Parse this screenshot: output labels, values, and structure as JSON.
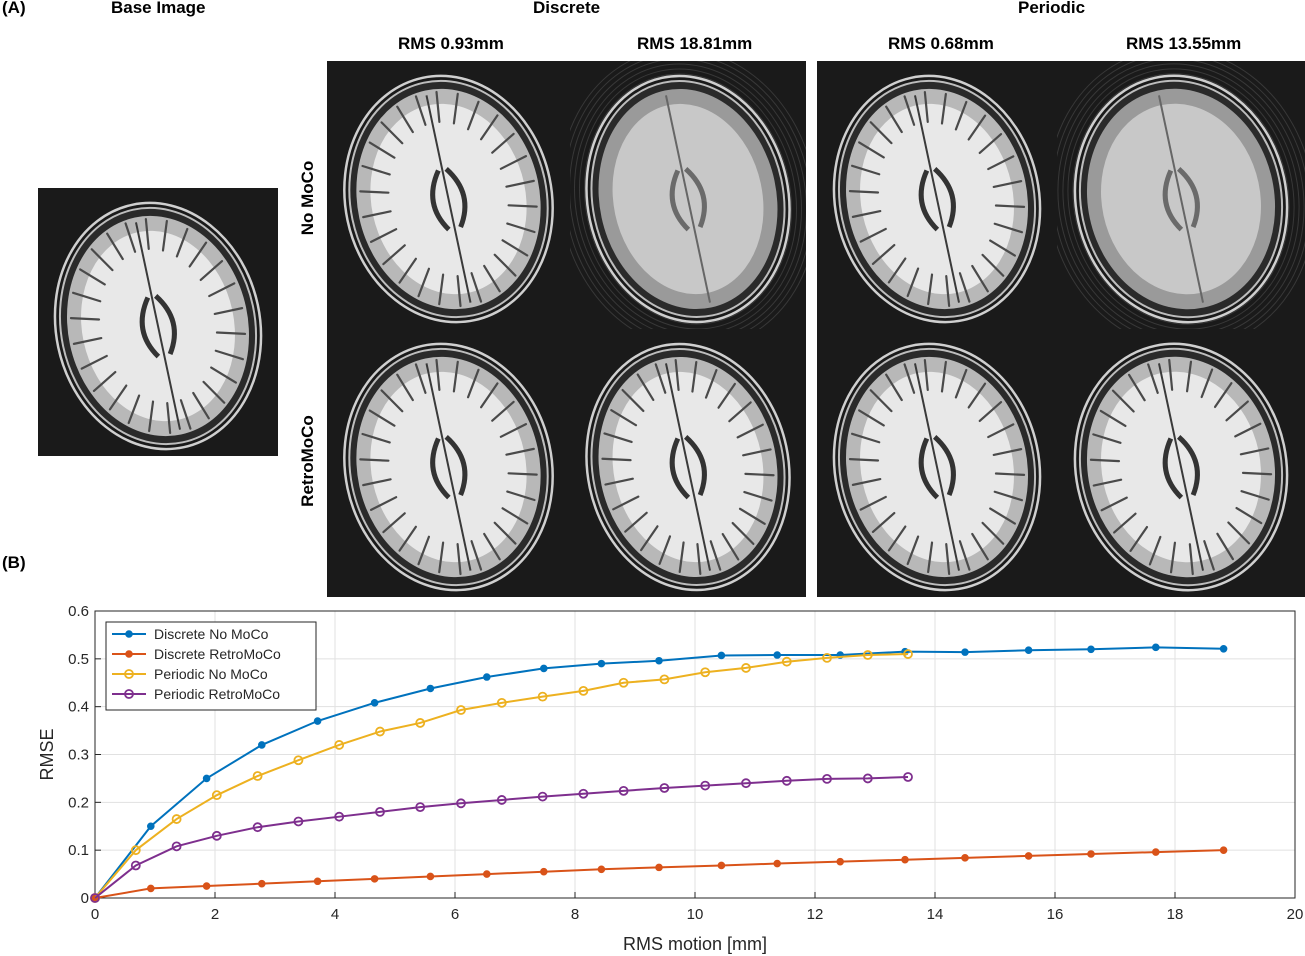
{
  "panel_a": {
    "letter": "(A)",
    "base_title": "Base Image",
    "group_discrete": "Discrete",
    "group_periodic": "Periodic",
    "col_labels": [
      "RMS 0.93mm",
      "RMS 18.81mm",
      "RMS 0.68mm",
      "RMS 13.55mm"
    ],
    "row_labels": [
      "No MoCo",
      "RetroMoCo"
    ]
  },
  "panel_b": {
    "letter": "(B)"
  },
  "chart_data": {
    "type": "line",
    "xlabel": "RMS motion [mm]",
    "ylabel": "RMSE",
    "xlim": [
      0,
      20
    ],
    "ylim": [
      0,
      0.6
    ],
    "xticks": [
      0,
      2,
      4,
      6,
      8,
      10,
      12,
      14,
      16,
      18,
      20
    ],
    "yticks": [
      0,
      0.1,
      0.2,
      0.3,
      0.4,
      0.5,
      0.6
    ],
    "ytick_labels": [
      "0",
      "0.1",
      "0.2",
      "0.3",
      "0.4",
      "0.5",
      "0.6"
    ],
    "grid": true,
    "legend_position": "top-left",
    "series": [
      {
        "name": "Discrete No MoCo",
        "color": "#0072BD",
        "marker": "filled-circle",
        "x": [
          0,
          0.93,
          1.86,
          2.78,
          3.71,
          4.66,
          5.59,
          6.53,
          7.48,
          8.44,
          9.4,
          10.44,
          11.37,
          12.42,
          13.5,
          14.5,
          15.56,
          16.6,
          17.68,
          18.81
        ],
        "y": [
          0,
          0.15,
          0.25,
          0.32,
          0.37,
          0.408,
          0.438,
          0.462,
          0.48,
          0.49,
          0.496,
          0.507,
          0.508,
          0.508,
          0.515,
          0.514,
          0.518,
          0.52,
          0.524,
          0.521
        ]
      },
      {
        "name": "Discrete  RetroMoCo",
        "color": "#D95319",
        "marker": "filled-circle",
        "x": [
          0,
          0.93,
          1.86,
          2.78,
          3.71,
          4.66,
          5.59,
          6.53,
          7.48,
          8.44,
          9.4,
          10.44,
          11.37,
          12.42,
          13.5,
          14.5,
          15.56,
          16.6,
          17.68,
          18.81
        ],
        "y": [
          0,
          0.02,
          0.025,
          0.03,
          0.035,
          0.04,
          0.045,
          0.05,
          0.055,
          0.06,
          0.064,
          0.068,
          0.072,
          0.076,
          0.08,
          0.084,
          0.088,
          0.092,
          0.096,
          0.1
        ]
      },
      {
        "name": "Periodic No MoCo",
        "color": "#EDB120",
        "marker": "open-circle",
        "x": [
          0,
          0.68,
          1.36,
          2.03,
          2.71,
          3.39,
          4.07,
          4.75,
          5.42,
          6.1,
          6.78,
          7.46,
          8.14,
          8.81,
          9.49,
          10.17,
          10.85,
          11.53,
          12.2,
          12.88,
          13.55
        ],
        "y": [
          0,
          0.1,
          0.165,
          0.215,
          0.255,
          0.288,
          0.32,
          0.348,
          0.366,
          0.393,
          0.408,
          0.421,
          0.433,
          0.45,
          0.457,
          0.472,
          0.481,
          0.494,
          0.502,
          0.508,
          0.51
        ]
      },
      {
        "name": "Periodic  RetroMoCo",
        "color": "#7E2F8E",
        "marker": "open-circle",
        "x": [
          0,
          0.68,
          1.36,
          2.03,
          2.71,
          3.39,
          4.07,
          4.75,
          5.42,
          6.1,
          6.78,
          7.46,
          8.14,
          8.81,
          9.49,
          10.17,
          10.85,
          11.53,
          12.2,
          12.88,
          13.55
        ],
        "y": [
          0,
          0.068,
          0.108,
          0.13,
          0.148,
          0.16,
          0.17,
          0.18,
          0.19,
          0.198,
          0.205,
          0.212,
          0.218,
          0.224,
          0.23,
          0.235,
          0.24,
          0.245,
          0.249,
          0.25,
          0.253
        ]
      }
    ]
  }
}
